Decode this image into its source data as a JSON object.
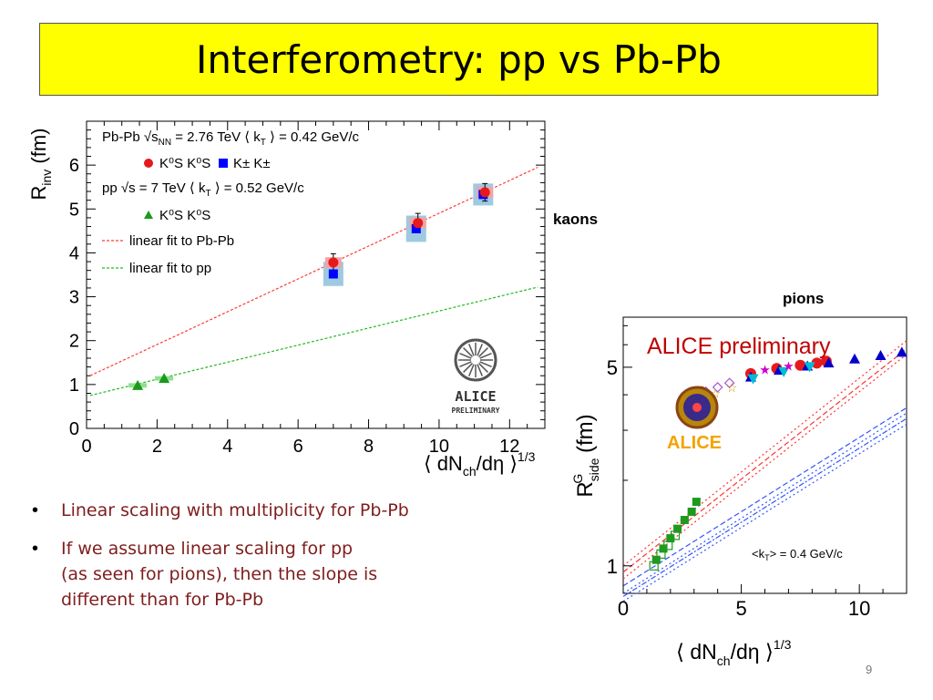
{
  "slide": {
    "title": "Interferometry: pp vs Pb-Pb",
    "kaons_label": "kaons",
    "pions_label": "pions",
    "bullets": [
      "Linear scaling with multiplicity for Pb-Pb",
      "If we assume linear scaling for pp\n(as seen for pions), then the slope is\ndifferent than for Pb-Pb"
    ],
    "page_number": "9"
  },
  "colors": {
    "title_bg": "#ffff00",
    "bullet_text": "#7f1d1d",
    "pbpb_red": "#e41a1c",
    "kpm_blue": "#0000ff",
    "pp_green": "#1a9a1a",
    "syst_blue": "#9ecae1",
    "alice_red": "#c00000"
  },
  "chart_data": [
    {
      "type": "scatter",
      "xlabel": "⟨ dN_ch/dη ⟩^1/3",
      "ylabel": "R_inv (fm)",
      "xlim": [
        0,
        13
      ],
      "ylim": [
        0,
        7
      ],
      "xticks": [
        "0",
        "2",
        "4",
        "6",
        "8",
        "10",
        "12"
      ],
      "yticks": [
        "0",
        "1",
        "2",
        "3",
        "4",
        "5",
        "6"
      ],
      "legend": {
        "position": "top-left",
        "line1": "Pb-Pb √s_NN = 2.76 TeV ⟨ k_T ⟩ = 0.42 GeV/c",
        "entry_ks_pbpb": "K⁰S K⁰S",
        "entry_kpm": "K± K±",
        "line2": "pp √s = 7 TeV ⟨ k_T ⟩ = 0.52 GeV/c",
        "entry_ks_pp": "K⁰S K⁰S",
        "fit_pbpb": "linear fit to Pb-Pb",
        "fit_pp": "linear fit to pp"
      },
      "logo": {
        "name": "ALICE",
        "sub": "PRELIMINARY"
      },
      "series": [
        {
          "name": "K⁰S K⁰S",
          "marker": "circle",
          "color": "#e41a1c",
          "x": [
            7.0,
            9.4,
            11.3
          ],
          "y": [
            3.78,
            4.68,
            5.38
          ],
          "err": [
            0.2,
            0.22,
            0.2
          ]
        },
        {
          "name": "K± K±",
          "marker": "square",
          "color": "#0000ff",
          "x": [
            7.0,
            9.35,
            11.25
          ],
          "y": [
            3.52,
            4.55,
            5.33
          ],
          "syst": [
            0.55,
            0.6,
            0.5
          ]
        },
        {
          "name": "K⁰S K⁰S",
          "marker": "triangle",
          "color": "#1a9a1a",
          "x": [
            1.45,
            2.2
          ],
          "y": [
            0.98,
            1.14
          ]
        }
      ],
      "fits": [
        {
          "name": "linear fit to Pb-Pb",
          "color": "#ff3b3b",
          "x": [
            0.1,
            12.8
          ],
          "y": [
            1.2,
            5.95
          ]
        },
        {
          "name": "linear fit to pp",
          "color": "#22bb22",
          "x": [
            0.1,
            12.8
          ],
          "y": [
            0.75,
            3.22
          ]
        }
      ]
    },
    {
      "type": "scatter",
      "title": "ALICE preliminary",
      "xlabel": "⟨ dN_ch/dη ⟩^1/3",
      "ylabel": "R^G_side (fm)",
      "xlim": [
        0,
        12
      ],
      "xticks": [
        "0",
        "5",
        "10"
      ],
      "yticks": [
        "1",
        "5"
      ],
      "annotation": "<k_T> = 0.4 GeV/c",
      "series": [
        {
          "marker": "circle",
          "color": "#e41a1c",
          "x": [
            3.3,
            5.4,
            6.5,
            7.5,
            8.2,
            8.6
          ],
          "y": [
            4.1,
            4.75,
            4.95,
            5.08,
            5.17,
            5.25
          ]
        },
        {
          "marker": "triangle",
          "color": "#0000cc",
          "x": [
            5.4,
            6.6,
            7.8,
            8.7,
            9.8,
            10.9,
            11.8
          ],
          "y": [
            4.62,
            4.88,
            5.05,
            5.18,
            5.35,
            5.5,
            5.65
          ]
        },
        {
          "marker": "triangle-down",
          "color": "#00bcd4",
          "x": [
            5.5,
            6.8,
            7.9
          ],
          "y": [
            4.55,
            4.82,
            5.02
          ]
        },
        {
          "marker": "star",
          "color": "#cc00cc",
          "x": [
            6.0,
            7.0
          ],
          "y": [
            4.9,
            5.05
          ]
        },
        {
          "marker": "open-diamond",
          "color": "#aa55dd",
          "x": [
            2.5,
            3.0,
            3.5,
            4.0,
            4.5
          ],
          "y": [
            3.8,
            3.95,
            4.1,
            4.25,
            4.4
          ]
        },
        {
          "marker": "open-star",
          "color": "#c8a000",
          "x": [
            2.7,
            3.3,
            3.9,
            4.6
          ],
          "y": [
            3.7,
            3.9,
            4.05,
            4.25
          ]
        },
        {
          "marker": "square",
          "color": "#1f9a1f",
          "x": [
            1.4,
            1.7,
            2.0,
            2.3,
            2.6,
            2.9,
            3.1
          ],
          "y": [
            1.05,
            1.15,
            1.25,
            1.35,
            1.45,
            1.55,
            1.68
          ]
        },
        {
          "marker": "open-square",
          "color": "#1f9a1f",
          "x": [
            1.3,
            1.6,
            1.9,
            2.2
          ],
          "y": [
            1.0,
            1.1,
            1.18,
            1.28
          ]
        }
      ],
      "fit_lines": [
        {
          "color": "#ff3333",
          "dash": "2,3",
          "x": [
            0,
            12
          ],
          "y": [
            1.0,
            6.2
          ]
        },
        {
          "color": "#ff3333",
          "dash": "6,3",
          "x": [
            0,
            12
          ],
          "y": [
            0.95,
            5.8
          ]
        },
        {
          "color": "#ff3333",
          "dash": "2,3",
          "x": [
            0,
            12
          ],
          "y": [
            0.9,
            5.55
          ]
        },
        {
          "color": "#3355ff",
          "dash": "6,3",
          "x": [
            0,
            12
          ],
          "y": [
            0.85,
            3.6
          ]
        },
        {
          "color": "#3355ff",
          "dash": "2,3",
          "x": [
            0,
            12
          ],
          "y": [
            0.8,
            3.45
          ]
        },
        {
          "color": "#3355ff",
          "dash": "6,2,2,2",
          "x": [
            0,
            12
          ],
          "y": [
            0.78,
            3.3
          ]
        },
        {
          "color": "#3355ff",
          "dash": "2,3",
          "x": [
            0,
            12
          ],
          "y": [
            0.75,
            3.15
          ]
        }
      ]
    }
  ]
}
